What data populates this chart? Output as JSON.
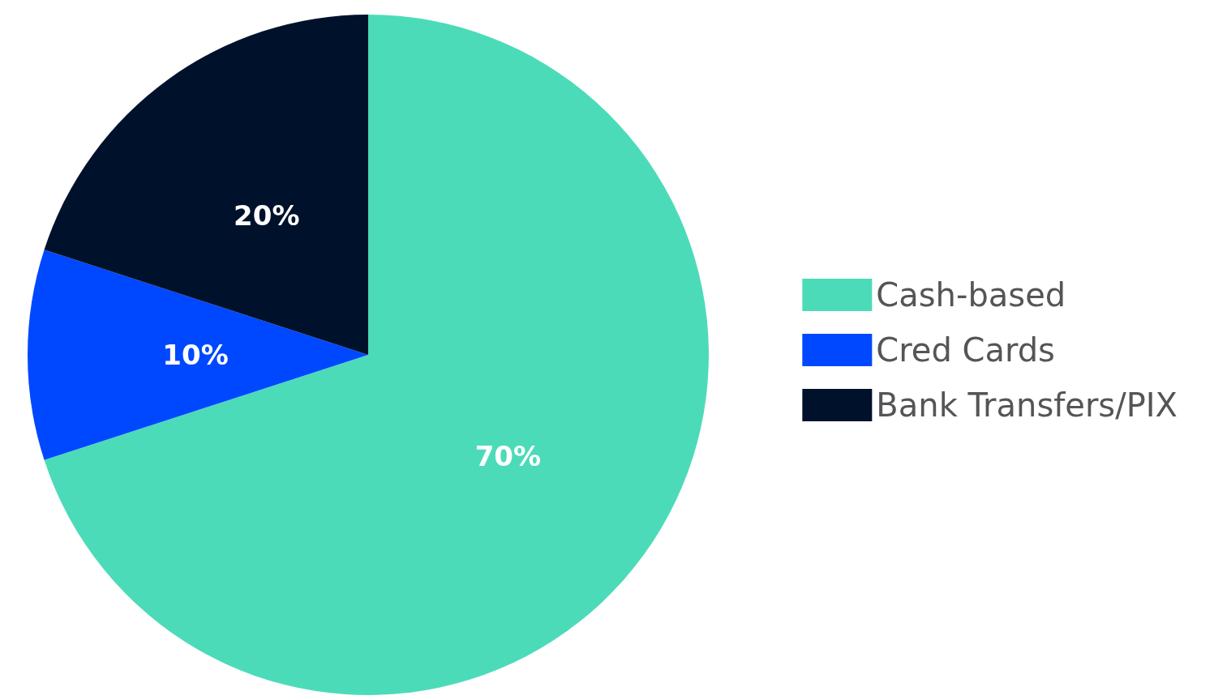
{
  "chart_data": {
    "type": "pie",
    "categories": [
      "Cash-based",
      "Cred Cards",
      "Bank Transfers/PIX"
    ],
    "values": [
      70,
      10,
      20
    ],
    "colors": [
      "#4cdbb8",
      "#0048ff",
      "#00112b"
    ],
    "value_labels": [
      "70%",
      "10%",
      "20%"
    ],
    "legend": "right"
  }
}
